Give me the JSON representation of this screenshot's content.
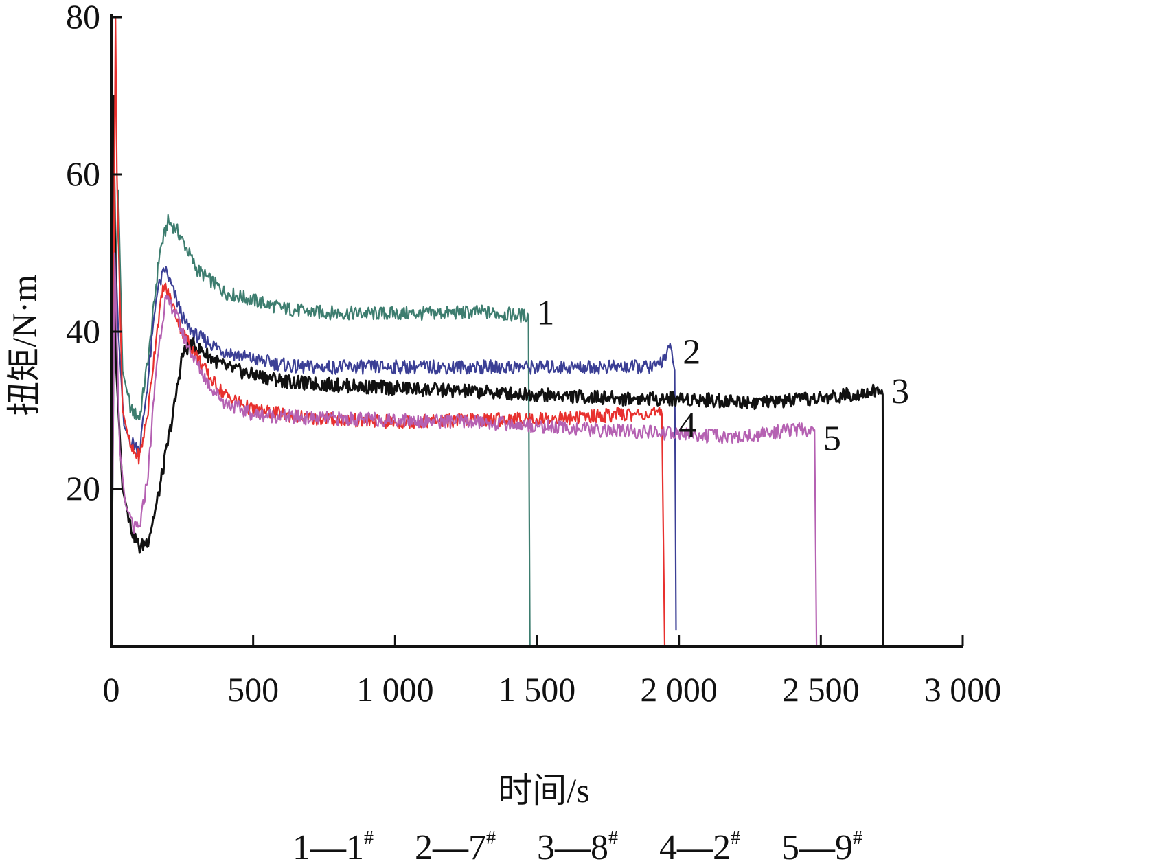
{
  "chart_data": {
    "type": "line",
    "title": "",
    "xlabel": "时间/s",
    "ylabel": "扭矩/N·m",
    "xlim": [
      0,
      3000
    ],
    "ylim": [
      0,
      80
    ],
    "x_ticks": [
      {
        "value": 0,
        "label": "0"
      },
      {
        "value": 500,
        "label": "500"
      },
      {
        "value": 1000,
        "label": "1 000"
      },
      {
        "value": 1500,
        "label": "1 500"
      },
      {
        "value": 2000,
        "label": "2 000"
      },
      {
        "value": 2500,
        "label": "2 500"
      },
      {
        "value": 3000,
        "label": "3 000"
      }
    ],
    "y_ticks": [
      {
        "value": 20,
        "label": "20"
      },
      {
        "value": 40,
        "label": "40"
      },
      {
        "value": 60,
        "label": "60"
      },
      {
        "value": 80,
        "label": "80"
      }
    ],
    "grid": false,
    "series": [
      {
        "label": "1",
        "color": "#3d7d6f",
        "end_x": 1475,
        "points": [
          [
            0,
            0
          ],
          [
            10,
            40
          ],
          [
            25,
            58
          ],
          [
            40,
            35
          ],
          [
            70,
            30
          ],
          [
            100,
            29
          ],
          [
            135,
            38
          ],
          [
            170,
            50
          ],
          [
            200,
            54
          ],
          [
            230,
            53
          ],
          [
            260,
            51
          ],
          [
            300,
            48
          ],
          [
            400,
            45
          ],
          [
            500,
            44
          ],
          [
            600,
            43
          ],
          [
            700,
            42.5
          ],
          [
            900,
            42.3
          ],
          [
            1100,
            42.3
          ],
          [
            1300,
            42.5
          ],
          [
            1470,
            42
          ],
          [
            1475,
            0
          ]
        ]
      },
      {
        "label": "2",
        "color": "#3b3f95",
        "end_x": 1990,
        "points": [
          [
            0,
            0
          ],
          [
            10,
            55
          ],
          [
            25,
            40
          ],
          [
            45,
            28
          ],
          [
            70,
            26
          ],
          [
            100,
            25
          ],
          [
            130,
            34
          ],
          [
            160,
            45
          ],
          [
            190,
            48
          ],
          [
            220,
            45
          ],
          [
            260,
            41
          ],
          [
            300,
            39.5
          ],
          [
            400,
            37.5
          ],
          [
            500,
            36.5
          ],
          [
            650,
            35.5
          ],
          [
            1000,
            35.5
          ],
          [
            1400,
            35.5
          ],
          [
            1700,
            35.5
          ],
          [
            1920,
            35.5
          ],
          [
            1975,
            38
          ],
          [
            1985,
            35
          ],
          [
            1990,
            2
          ]
        ]
      },
      {
        "label": "3",
        "color": "#111111",
        "end_x": 2720,
        "points": [
          [
            0,
            0
          ],
          [
            8,
            70
          ],
          [
            18,
            35
          ],
          [
            40,
            20
          ],
          [
            70,
            15
          ],
          [
            100,
            12.5
          ],
          [
            130,
            13.5
          ],
          [
            160,
            18
          ],
          [
            190,
            24
          ],
          [
            220,
            30
          ],
          [
            250,
            37
          ],
          [
            280,
            38.5
          ],
          [
            320,
            37.5
          ],
          [
            400,
            35.5
          ],
          [
            500,
            34.5
          ],
          [
            650,
            33.5
          ],
          [
            900,
            33
          ],
          [
            1200,
            32.5
          ],
          [
            1500,
            32
          ],
          [
            1800,
            31.5
          ],
          [
            2000,
            31.5
          ],
          [
            2300,
            31
          ],
          [
            2500,
            31.5
          ],
          [
            2600,
            32
          ],
          [
            2700,
            32.5
          ],
          [
            2718,
            32
          ],
          [
            2720,
            0
          ]
        ]
      },
      {
        "label": "4",
        "color": "#e8302e",
        "end_x": 1950,
        "points": [
          [
            0,
            0
          ],
          [
            15,
            80
          ],
          [
            20,
            60
          ],
          [
            40,
            30
          ],
          [
            70,
            25
          ],
          [
            100,
            24
          ],
          [
            130,
            30
          ],
          [
            160,
            40
          ],
          [
            185,
            46
          ],
          [
            210,
            44
          ],
          [
            250,
            40
          ],
          [
            300,
            37
          ],
          [
            350,
            34
          ],
          [
            400,
            32
          ],
          [
            500,
            30
          ],
          [
            700,
            29
          ],
          [
            1000,
            28.5
          ],
          [
            1300,
            28.8
          ],
          [
            1600,
            29
          ],
          [
            1800,
            29.5
          ],
          [
            1940,
            29.5
          ],
          [
            1950,
            0
          ]
        ]
      },
      {
        "label": "5",
        "color": "#b561b2",
        "end_x": 2485,
        "points": [
          [
            0,
            0
          ],
          [
            12,
            50
          ],
          [
            30,
            25
          ],
          [
            50,
            18
          ],
          [
            80,
            15
          ],
          [
            100,
            15
          ],
          [
            130,
            22
          ],
          [
            160,
            36
          ],
          [
            190,
            44
          ],
          [
            220,
            43
          ],
          [
            260,
            39
          ],
          [
            300,
            36
          ],
          [
            350,
            33
          ],
          [
            400,
            31
          ],
          [
            500,
            29.5
          ],
          [
            700,
            29
          ],
          [
            1000,
            28.8
          ],
          [
            1300,
            28.5
          ],
          [
            1500,
            28
          ],
          [
            1700,
            27.5
          ],
          [
            2000,
            27
          ],
          [
            2200,
            26.5
          ],
          [
            2300,
            27
          ],
          [
            2400,
            27.5
          ],
          [
            2478,
            27.5
          ],
          [
            2485,
            0
          ]
        ]
      }
    ],
    "curve_labels": [
      {
        "text": "1",
        "x": 1530,
        "y": 42.5
      },
      {
        "text": "2",
        "x": 2045,
        "y": 37.5
      },
      {
        "text": "3",
        "x": 2780,
        "y": 32.5
      },
      {
        "text": "4",
        "x": 2030,
        "y": 28.2
      },
      {
        "text": "5",
        "x": 2540,
        "y": 26.5
      }
    ],
    "legend": [
      {
        "key": "1",
        "sample": "1",
        "sup": "#"
      },
      {
        "key": "2",
        "sample": "7",
        "sup": "#"
      },
      {
        "key": "3",
        "sample": "8",
        "sup": "#"
      },
      {
        "key": "4",
        "sample": "2",
        "sup": "#"
      },
      {
        "key": "5",
        "sample": "9",
        "sup": "#"
      }
    ],
    "legend_separator": "—",
    "legend_position": "bottom"
  }
}
